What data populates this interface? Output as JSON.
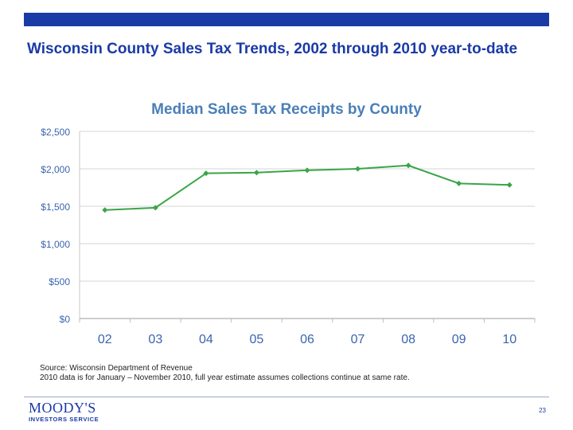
{
  "slide": {
    "title": "Wisconsin County Sales Tax Trends, 2002 through 2010 year-to-date",
    "source_line1": "Source: Wisconsin Department of Revenue",
    "source_line2": "2010 data is for January – November 2010, full year estimate assumes collections continue at same rate.",
    "page_number": "23"
  },
  "logo": {
    "brand": "MOODY'S",
    "subtitle": "INVESTORS SERVICE"
  },
  "colors": {
    "brand_blue": "#1a3aa6",
    "line": "#3aa548",
    "chart_title": "#4a7fb8",
    "axis_label": "#3a64b0"
  },
  "chart_data": {
    "type": "line",
    "title": "Median Sales Tax Receipts by County",
    "categories": [
      "02",
      "03",
      "04",
      "05",
      "06",
      "07",
      "08",
      "09",
      "10"
    ],
    "series": [
      {
        "values": [
          1450,
          1480,
          1940,
          1950,
          1980,
          2000,
          2045,
          1805,
          1785
        ]
      }
    ],
    "y_ticks": [
      "$0",
      "$500",
      "$1,000",
      "$1,500",
      "$2,000",
      "$2,500"
    ],
    "y_tick_values": [
      0,
      500,
      1000,
      1500,
      2000,
      2500
    ],
    "ylim": [
      0,
      2500
    ],
    "xlabel": "",
    "ylabel": "",
    "grid": true
  }
}
